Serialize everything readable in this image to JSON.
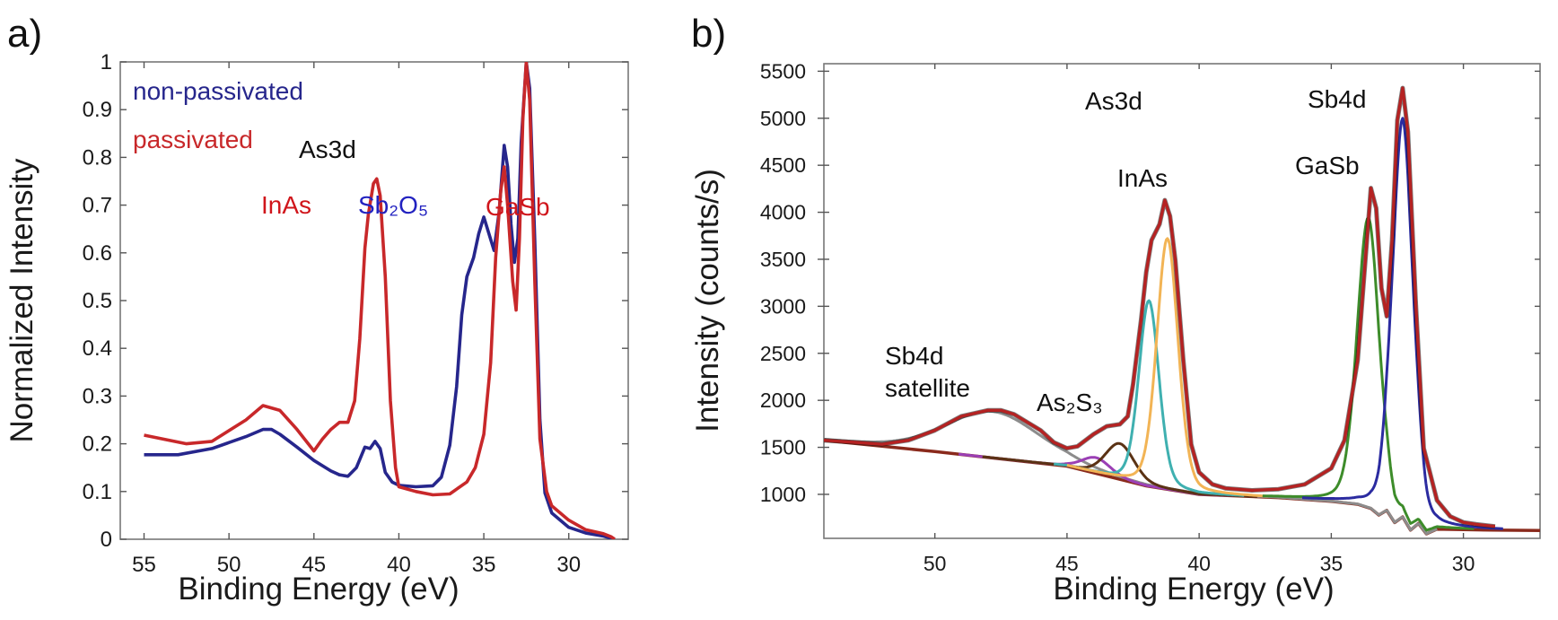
{
  "chart_data": [
    {
      "panel_label": "a)",
      "type": "line",
      "xlabel": "Binding Energy (eV)",
      "ylabel": "Normalized Intensity",
      "xlim": [
        56.4,
        26.5
      ],
      "ylim": [
        0,
        1
      ],
      "x_reversed": true,
      "grid": false,
      "xticks": [
        55,
        50,
        45,
        40,
        35,
        30
      ],
      "xtick_labels": [
        "55",
        "50",
        "45",
        "40",
        "35",
        "30"
      ],
      "yticks": [
        0,
        0.1,
        0.2,
        0.3,
        0.4,
        0.5,
        0.6,
        0.7,
        0.8,
        0.9,
        1
      ],
      "ytick_labels": [
        "0",
        "0.1",
        "0.2",
        "0.3",
        "0.4",
        "0.5",
        "0.6",
        "0.7",
        "0.8",
        "0.9",
        "1"
      ],
      "legend_placement": "top-left",
      "series": [
        {
          "name": "non-passivated",
          "color": "#26268c",
          "x": [
            55,
            53,
            51,
            49,
            48,
            47.5,
            47,
            46,
            45,
            44,
            43.5,
            43,
            42.5,
            42,
            41.7,
            41.4,
            41.1,
            40.8,
            40.4,
            40,
            39,
            38,
            37.5,
            37,
            36.6,
            36.3,
            36,
            35.6,
            35.3,
            35.0,
            34.7,
            34.4,
            34.1,
            33.8,
            33.6,
            33.4,
            33.2,
            33.0,
            32.8,
            32.5,
            32.3,
            32.0,
            31.7,
            31.4,
            31,
            30,
            29,
            28,
            27.3
          ],
          "y": [
            0.177,
            0.177,
            0.19,
            0.215,
            0.23,
            0.23,
            0.22,
            0.193,
            0.165,
            0.143,
            0.135,
            0.132,
            0.15,
            0.193,
            0.19,
            0.205,
            0.19,
            0.14,
            0.12,
            0.113,
            0.11,
            0.112,
            0.13,
            0.197,
            0.32,
            0.47,
            0.55,
            0.59,
            0.64,
            0.675,
            0.64,
            0.605,
            0.685,
            0.825,
            0.78,
            0.66,
            0.58,
            0.63,
            0.83,
            1.0,
            0.945,
            0.625,
            0.25,
            0.097,
            0.055,
            0.025,
            0.013,
            0.007,
            0
          ]
        },
        {
          "name": "passivated",
          "color": "#c8282a",
          "x": [
            55,
            52.5,
            51,
            49,
            48,
            47,
            46,
            45,
            44.5,
            44,
            43.5,
            43,
            42.6,
            42.3,
            42,
            41.8,
            41.5,
            41.3,
            41.1,
            40.8,
            40.5,
            40.2,
            40,
            39,
            38,
            37,
            36,
            35.5,
            35,
            34.6,
            34.3,
            34.0,
            33.8,
            33.6,
            33.3,
            33.1,
            32.9,
            32.7,
            32.5,
            32.3,
            32.0,
            31.7,
            31.3,
            31,
            30,
            29,
            28,
            27.5,
            27.3
          ],
          "y": [
            0.218,
            0.2,
            0.205,
            0.25,
            0.28,
            0.27,
            0.23,
            0.185,
            0.21,
            0.23,
            0.245,
            0.245,
            0.29,
            0.42,
            0.61,
            0.68,
            0.745,
            0.755,
            0.72,
            0.55,
            0.29,
            0.15,
            0.11,
            0.1,
            0.093,
            0.095,
            0.12,
            0.15,
            0.22,
            0.37,
            0.59,
            0.73,
            0.78,
            0.7,
            0.54,
            0.48,
            0.63,
            0.88,
            1.0,
            0.92,
            0.54,
            0.21,
            0.1,
            0.07,
            0.04,
            0.02,
            0.012,
            0.005,
            0
          ]
        }
      ],
      "annotations": [
        {
          "text": "non-passivated",
          "color": "#26268c"
        },
        {
          "text": "passivated",
          "color": "#c8282a"
        },
        {
          "text": "As3d",
          "color": "#111111"
        },
        {
          "text": "InAs",
          "color": "#d0151b"
        },
        {
          "text": "Sb₂O₅",
          "color": "#2222c0"
        },
        {
          "text": "GaSb",
          "color": "#d0151b"
        }
      ]
    },
    {
      "panel_label": "b)",
      "type": "line",
      "xlabel": "Binding Energy (eV)",
      "ylabel": "Intensity (counts/s)",
      "xlim": [
        54.2,
        27.1
      ],
      "ylim": [
        532,
        5580
      ],
      "x_reversed": true,
      "grid": false,
      "xticks": [
        50,
        45,
        40,
        35,
        30
      ],
      "xtick_labels": [
        "50",
        "45",
        "40",
        "35",
        "30"
      ],
      "yticks": [
        1000,
        1500,
        2000,
        2500,
        3000,
        3500,
        4000,
        4500,
        5000,
        5500
      ],
      "ytick_labels": [
        "1000",
        "1500",
        "2000",
        "2500",
        "3000",
        "3500",
        "4000",
        "4500",
        "5000",
        "5500"
      ],
      "background": {
        "color": "#8a2a1c",
        "x": [
          54.2,
          50,
          45,
          42,
          40,
          37,
          35,
          34,
          33.5,
          33.2,
          32.9,
          32.6,
          32.3,
          32.0,
          31.7,
          31.4,
          31,
          30,
          29,
          27.1
        ],
        "y": [
          1575,
          1455,
          1300,
          1090,
          1000,
          965,
          925,
          895,
          850,
          780,
          830,
          700,
          760,
          620,
          690,
          580,
          630,
          625,
          620,
          615
        ]
      },
      "envelope": {
        "color": "#b52222",
        "x": [
          54.2,
          53,
          52,
          51,
          50,
          49,
          48,
          47.5,
          47,
          46,
          45.5,
          45,
          44.6,
          44,
          43.5,
          43,
          42.7,
          42.5,
          42.2,
          42.0,
          41.8,
          41.5,
          41.3,
          41.1,
          40.9,
          40.6,
          40.3,
          40,
          39.5,
          39,
          38,
          37,
          36,
          35,
          34.5,
          34,
          33.7,
          33.5,
          33.3,
          33.1,
          32.9,
          32.7,
          32.5,
          32.3,
          32.1,
          31.8,
          31.5,
          31,
          30.5,
          30,
          29.5,
          28.8
        ],
        "y": [
          1575,
          1553,
          1532,
          1575,
          1681,
          1830,
          1894,
          1894,
          1851,
          1681,
          1553,
          1490,
          1511,
          1639,
          1724,
          1745,
          1830,
          2170,
          2852,
          3363,
          3703,
          3873,
          4129,
          3959,
          3490,
          2426,
          1532,
          1234,
          1106,
          1064,
          1043,
          1055,
          1106,
          1277,
          1575,
          2426,
          3533,
          4257,
          4044,
          3192,
          2894,
          3703,
          4980,
          5321,
          4853,
          3022,
          1490,
          936,
          766,
          702,
          681,
          659
        ]
      },
      "components": [
        {
          "center": 47.8,
          "peak": 1880,
          "fwhm": 4.2,
          "color": "#8c8c8c"
        },
        {
          "center": 43.9,
          "peak": 1390,
          "fwhm": 1.3,
          "color": "#9b3fb5"
        },
        {
          "center": 43.0,
          "peak": 1540,
          "fwhm": 1.3,
          "color": "#5a3214"
        },
        {
          "center": 41.9,
          "peak": 3060,
          "fwhm": 0.9,
          "color": "#3fb0b0"
        },
        {
          "center": 41.2,
          "peak": 3720,
          "fwhm": 0.95,
          "color": "#f2b455"
        },
        {
          "center": 33.6,
          "peak": 3940,
          "fwhm": 1.0,
          "color": "#3d8c2a"
        },
        {
          "center": 32.3,
          "peak": 5000,
          "fwhm": 0.95,
          "color": "#2b2ba0"
        }
      ],
      "annotations": [
        {
          "text": "As3d",
          "color": "#111111"
        },
        {
          "text": "Sb4d",
          "color": "#111111"
        },
        {
          "text": "InAs",
          "color": "#111111"
        },
        {
          "text": "GaSb",
          "color": "#111111"
        },
        {
          "text": "Sb4d",
          "color": "#111111"
        },
        {
          "text": "satellite",
          "color": "#111111"
        },
        {
          "text": "As₂S₃",
          "color": "#111111"
        }
      ]
    }
  ]
}
